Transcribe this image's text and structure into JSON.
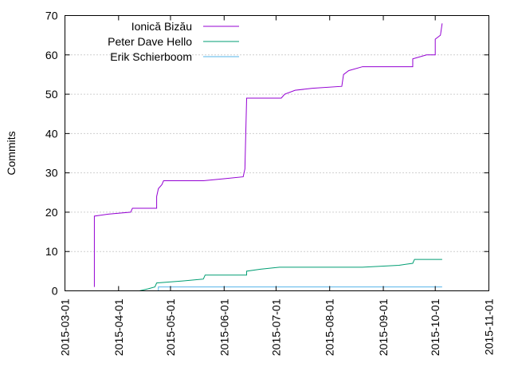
{
  "chart_data": {
    "type": "line",
    "title": "",
    "xlabel": "",
    "ylabel": "Commits",
    "xlim": [
      "2015-03-01",
      "2015-11-01"
    ],
    "ylim": [
      0,
      70
    ],
    "x_ticks": [
      "2015-03-01",
      "2015-04-01",
      "2015-05-01",
      "2015-06-01",
      "2015-07-01",
      "2015-08-01",
      "2015-09-01",
      "2015-10-01",
      "2015-11-01"
    ],
    "y_ticks": [
      "0",
      "10",
      "20",
      "30",
      "40",
      "50",
      "60",
      "70"
    ],
    "grid": true,
    "legend_position": "top-left",
    "series": [
      {
        "name": "Ionică Bizău",
        "color": "#9400d3",
        "points": [
          [
            "2015-03-18",
            1
          ],
          [
            "2015-03-18",
            19
          ],
          [
            "2015-03-26",
            19.5
          ],
          [
            "2015-04-08",
            20
          ],
          [
            "2015-04-09",
            21
          ],
          [
            "2015-04-23",
            21
          ],
          [
            "2015-04-23",
            24
          ],
          [
            "2015-04-24",
            26
          ],
          [
            "2015-04-26",
            27
          ],
          [
            "2015-04-27",
            28
          ],
          [
            "2015-05-20",
            28
          ],
          [
            "2015-06-01",
            28.5
          ],
          [
            "2015-06-12",
            29
          ],
          [
            "2015-06-13",
            31
          ],
          [
            "2015-06-14",
            49
          ],
          [
            "2015-07-04",
            49
          ],
          [
            "2015-07-06",
            50
          ],
          [
            "2015-07-12",
            51
          ],
          [
            "2015-07-22",
            51.5
          ],
          [
            "2015-08-08",
            52
          ],
          [
            "2015-08-09",
            55
          ],
          [
            "2015-08-12",
            56
          ],
          [
            "2015-08-20",
            57
          ],
          [
            "2015-09-18",
            57
          ],
          [
            "2015-09-18",
            59
          ],
          [
            "2015-09-26",
            60
          ],
          [
            "2015-10-01",
            60
          ],
          [
            "2015-10-01",
            64
          ],
          [
            "2015-10-04",
            65
          ],
          [
            "2015-10-05",
            68
          ]
        ]
      },
      {
        "name": "Peter Dave Hello",
        "color": "#009e73",
        "points": [
          [
            "2015-04-13",
            0
          ],
          [
            "2015-04-18",
            0.5
          ],
          [
            "2015-04-22",
            1
          ],
          [
            "2015-04-23",
            2
          ],
          [
            "2015-05-08",
            2.5
          ],
          [
            "2015-05-20",
            3
          ],
          [
            "2015-05-21",
            4
          ],
          [
            "2015-06-14",
            4
          ],
          [
            "2015-06-14",
            5
          ],
          [
            "2015-06-22",
            5.5
          ],
          [
            "2015-07-03",
            6
          ],
          [
            "2015-08-20",
            6
          ],
          [
            "2015-09-10",
            6.5
          ],
          [
            "2015-09-18",
            7
          ],
          [
            "2015-09-19",
            8
          ],
          [
            "2015-10-05",
            8
          ]
        ]
      },
      {
        "name": "Erik Schierboom",
        "color": "#56b4e9",
        "points": [
          [
            "2015-04-24",
            0
          ],
          [
            "2015-04-24",
            1
          ],
          [
            "2015-10-05",
            1
          ]
        ]
      }
    ]
  }
}
